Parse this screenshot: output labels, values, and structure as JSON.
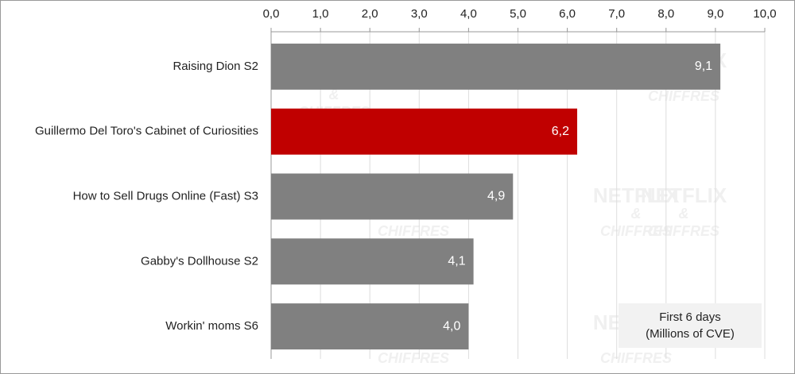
{
  "chart_data": {
    "type": "bar",
    "orientation": "horizontal",
    "categories": [
      "Raising Dion S2",
      "Guillermo Del Toro's Cabinet of Curiosities",
      "How to Sell Drugs Online (Fast) S3",
      "Gabby's Dollhouse S2",
      "Workin' moms S6"
    ],
    "values": [
      9.1,
      6.2,
      4.9,
      4.1,
      4.0
    ],
    "value_labels": [
      "9,1",
      "6,2",
      "4,9",
      "4,1",
      "4,0"
    ],
    "colors": [
      "#808080",
      "#c00000",
      "#808080",
      "#808080",
      "#808080"
    ],
    "xlim": [
      0,
      10
    ],
    "xticks": [
      {
        "value": 0,
        "label": "0,0"
      },
      {
        "value": 1,
        "label": "1,0"
      },
      {
        "value": 2,
        "label": "2,0"
      },
      {
        "value": 3,
        "label": "3,0"
      },
      {
        "value": 4,
        "label": "4,0"
      },
      {
        "value": 5,
        "label": "5,0"
      },
      {
        "value": 6,
        "label": "6,0"
      },
      {
        "value": 7,
        "label": "7,0"
      },
      {
        "value": 8,
        "label": "8,0"
      },
      {
        "value": 9,
        "label": "9,0"
      },
      {
        "value": 10,
        "label": "10,0"
      }
    ],
    "grid": true,
    "annotation": [
      "First 6 days",
      "(Millions of CVE)"
    ],
    "watermark": [
      "NETFLIX",
      "&",
      "CHIFFRES"
    ]
  }
}
